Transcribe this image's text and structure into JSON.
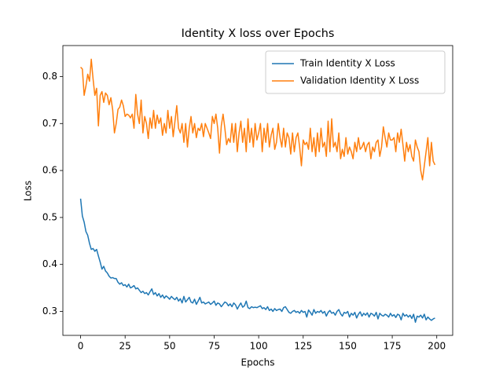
{
  "chart_data": {
    "type": "line",
    "title": "Identity X loss over Epochs",
    "x_label": "Epochs",
    "y_label": "Loss",
    "x": [
      0,
      1,
      2,
      3,
      4,
      5,
      6,
      7,
      8,
      9,
      10,
      11,
      12,
      13,
      14,
      15,
      16,
      17,
      18,
      19,
      20,
      21,
      22,
      23,
      24,
      25,
      26,
      27,
      28,
      29,
      30,
      31,
      32,
      33,
      34,
      35,
      36,
      37,
      38,
      39,
      40,
      41,
      42,
      43,
      44,
      45,
      46,
      47,
      48,
      49,
      50,
      51,
      52,
      53,
      54,
      55,
      56,
      57,
      58,
      59,
      60,
      61,
      62,
      63,
      64,
      65,
      66,
      67,
      68,
      69,
      70,
      71,
      72,
      73,
      74,
      75,
      76,
      77,
      78,
      79,
      80,
      81,
      82,
      83,
      84,
      85,
      86,
      87,
      88,
      89,
      90,
      91,
      92,
      93,
      94,
      95,
      96,
      97,
      98,
      99,
      100,
      101,
      102,
      103,
      104,
      105,
      106,
      107,
      108,
      109,
      110,
      111,
      112,
      113,
      114,
      115,
      116,
      117,
      118,
      119,
      120,
      121,
      122,
      123,
      124,
      125,
      126,
      127,
      128,
      129,
      130,
      131,
      132,
      133,
      134,
      135,
      136,
      137,
      138,
      139,
      140,
      141,
      142,
      143,
      144,
      145,
      146,
      147,
      148,
      149,
      150,
      151,
      152,
      153,
      154,
      155,
      156,
      157,
      158,
      159,
      160,
      161,
      162,
      163,
      164,
      165,
      166,
      167,
      168,
      169,
      170,
      171,
      172,
      173,
      174,
      175,
      176,
      177,
      178,
      179,
      180,
      181,
      182,
      183,
      184,
      185,
      186,
      187,
      188,
      189,
      190,
      191,
      192,
      193,
      194,
      195,
      196,
      197,
      198,
      199
    ],
    "series": [
      {
        "name": "Train Identity X Loss",
        "color": "#1f77b4",
        "values": [
          0.54,
          0.503,
          0.49,
          0.47,
          0.462,
          0.445,
          0.432,
          0.434,
          0.428,
          0.432,
          0.418,
          0.405,
          0.39,
          0.396,
          0.386,
          0.382,
          0.375,
          0.371,
          0.372,
          0.37,
          0.37,
          0.362,
          0.358,
          0.361,
          0.355,
          0.357,
          0.352,
          0.358,
          0.35,
          0.352,
          0.355,
          0.348,
          0.35,
          0.345,
          0.34,
          0.343,
          0.338,
          0.34,
          0.335,
          0.342,
          0.348,
          0.336,
          0.34,
          0.333,
          0.338,
          0.33,
          0.335,
          0.328,
          0.333,
          0.33,
          0.326,
          0.332,
          0.328,
          0.325,
          0.33,
          0.322,
          0.327,
          0.318,
          0.332,
          0.32,
          0.325,
          0.33,
          0.32,
          0.318,
          0.326,
          0.315,
          0.322,
          0.33,
          0.318,
          0.32,
          0.316,
          0.318,
          0.32,
          0.315,
          0.318,
          0.322,
          0.313,
          0.318,
          0.316,
          0.31,
          0.315,
          0.32,
          0.318,
          0.312,
          0.316,
          0.31,
          0.318,
          0.314,
          0.305,
          0.312,
          0.318,
          0.309,
          0.312,
          0.322,
          0.308,
          0.306,
          0.31,
          0.308,
          0.309,
          0.308,
          0.31,
          0.312,
          0.306,
          0.308,
          0.304,
          0.31,
          0.302,
          0.305,
          0.3,
          0.306,
          0.302,
          0.304,
          0.305,
          0.3,
          0.308,
          0.31,
          0.304,
          0.298,
          0.296,
          0.3,
          0.302,
          0.298,
          0.3,
          0.296,
          0.302,
          0.298,
          0.3,
          0.288,
          0.303,
          0.298,
          0.292,
          0.304,
          0.296,
          0.3,
          0.298,
          0.302,
          0.296,
          0.3,
          0.29,
          0.298,
          0.302,
          0.296,
          0.298,
          0.292,
          0.3,
          0.304,
          0.295,
          0.29,
          0.298,
          0.296,
          0.3,
          0.288,
          0.296,
          0.292,
          0.298,
          0.286,
          0.294,
          0.299,
          0.29,
          0.296,
          0.292,
          0.297,
          0.288,
          0.296,
          0.294,
          0.29,
          0.298,
          0.284,
          0.296,
          0.292,
          0.29,
          0.294,
          0.292,
          0.288,
          0.296,
          0.29,
          0.293,
          0.287,
          0.294,
          0.292,
          0.282,
          0.296,
          0.29,
          0.293,
          0.288,
          0.292,
          0.285,
          0.294,
          0.277,
          0.29,
          0.288,
          0.292,
          0.286,
          0.294,
          0.282,
          0.288,
          0.284,
          0.281,
          0.284,
          0.286
        ]
      },
      {
        "name": "Validation Identity X Loss",
        "color": "#ff7f0e",
        "values": [
          0.82,
          0.816,
          0.76,
          0.78,
          0.805,
          0.79,
          0.837,
          0.795,
          0.76,
          0.775,
          0.695,
          0.76,
          0.768,
          0.745,
          0.765,
          0.76,
          0.74,
          0.755,
          0.73,
          0.68,
          0.7,
          0.73,
          0.735,
          0.75,
          0.738,
          0.715,
          0.72,
          0.718,
          0.712,
          0.72,
          0.69,
          0.762,
          0.72,
          0.7,
          0.75,
          0.68,
          0.715,
          0.7,
          0.668,
          0.712,
          0.69,
          0.728,
          0.69,
          0.718,
          0.7,
          0.712,
          0.675,
          0.7,
          0.68,
          0.728,
          0.69,
          0.715,
          0.672,
          0.705,
          0.738,
          0.69,
          0.68,
          0.7,
          0.66,
          0.7,
          0.65,
          0.69,
          0.715,
          0.68,
          0.7,
          0.67,
          0.69,
          0.685,
          0.7,
          0.672,
          0.7,
          0.69,
          0.68,
          0.668,
          0.715,
          0.7,
          0.72,
          0.69,
          0.637,
          0.695,
          0.72,
          0.69,
          0.655,
          0.668,
          0.66,
          0.7,
          0.66,
          0.7,
          0.64,
          0.68,
          0.705,
          0.66,
          0.69,
          0.64,
          0.71,
          0.66,
          0.69,
          0.65,
          0.7,
          0.665,
          0.68,
          0.7,
          0.64,
          0.69,
          0.66,
          0.7,
          0.65,
          0.675,
          0.69,
          0.645,
          0.66,
          0.7,
          0.67,
          0.65,
          0.69,
          0.65,
          0.68,
          0.67,
          0.635,
          0.68,
          0.64,
          0.67,
          0.68,
          0.65,
          0.61,
          0.665,
          0.655,
          0.66,
          0.645,
          0.69,
          0.64,
          0.67,
          0.63,
          0.68,
          0.64,
          0.69,
          0.65,
          0.66,
          0.63,
          0.705,
          0.64,
          0.71,
          0.65,
          0.66,
          0.64,
          0.68,
          0.625,
          0.645,
          0.63,
          0.67,
          0.635,
          0.65,
          0.64,
          0.625,
          0.66,
          0.64,
          0.67,
          0.645,
          0.65,
          0.66,
          0.64,
          0.655,
          0.66,
          0.625,
          0.65,
          0.64,
          0.66,
          0.665,
          0.63,
          0.65,
          0.693,
          0.67,
          0.65,
          0.68,
          0.665,
          0.665,
          0.67,
          0.64,
          0.68,
          0.66,
          0.688,
          0.655,
          0.62,
          0.66,
          0.64,
          0.655,
          0.63,
          0.62,
          0.665,
          0.65,
          0.64,
          0.6,
          0.58,
          0.61,
          0.64,
          0.67,
          0.61,
          0.66,
          0.62,
          0.612
        ]
      }
    ],
    "xlim": [
      -9.95,
      208.95
    ],
    "ylim": [
      0.249,
      0.866
    ],
    "xticks": [
      0,
      25,
      50,
      75,
      100,
      125,
      150,
      175,
      200
    ],
    "yticks": [
      0.3,
      0.4,
      0.5,
      0.6,
      0.7,
      0.8
    ],
    "legend": "upper right",
    "grid": false
  }
}
